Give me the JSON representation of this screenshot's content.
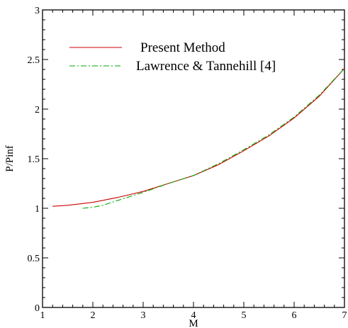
{
  "chart_data": {
    "type": "line",
    "title": "",
    "xlabel": "M",
    "ylabel": "P/Pinf",
    "xlim": [
      1,
      7
    ],
    "ylim": [
      0,
      3
    ],
    "xticks": [
      "1",
      "2",
      "3",
      "4",
      "5",
      "6",
      "7"
    ],
    "yticks": [
      "0",
      "0.5",
      "1",
      "1.5",
      "2",
      "2.5",
      "3"
    ],
    "grid": false,
    "legend_position": "top-left",
    "series": [
      {
        "name": "Present Method",
        "color": "#cc0000",
        "style": "solid",
        "x": [
          1.2,
          1.5,
          2.0,
          2.2,
          2.5,
          3.0,
          3.5,
          4.0,
          4.5,
          5.0,
          5.5,
          6.0,
          6.5,
          7.0
        ],
        "y": [
          1.02,
          1.03,
          1.06,
          1.08,
          1.11,
          1.17,
          1.25,
          1.33,
          1.44,
          1.58,
          1.73,
          1.91,
          2.13,
          2.41
        ]
      },
      {
        "name": "Lawrence & Tannehill [4]",
        "color": "#00aa00",
        "style": "dashdot",
        "x": [
          1.8,
          2.0,
          2.2,
          2.5,
          3.0,
          3.5,
          4.0,
          4.5,
          5.0,
          5.5,
          6.0,
          6.5,
          7.0
        ],
        "y": [
          1.0,
          1.01,
          1.03,
          1.08,
          1.16,
          1.25,
          1.33,
          1.45,
          1.59,
          1.74,
          1.92,
          2.14,
          2.41
        ]
      }
    ]
  }
}
